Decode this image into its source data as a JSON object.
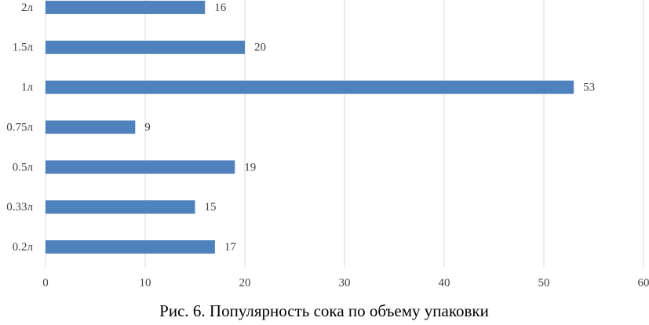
{
  "chart_data": {
    "type": "barh",
    "title": "Рис. 6. Популярность сока по объему упаковки",
    "categories": [
      "2л",
      "1.5л",
      "1л",
      "0.75л",
      "0.5л",
      "0.33л",
      "0.2л"
    ],
    "values": [
      16,
      20,
      53,
      9,
      19,
      15,
      17
    ],
    "color": "#4f81bd",
    "xlim": [
      0,
      60
    ],
    "xticks": [
      0,
      10,
      20,
      30,
      40,
      50,
      60
    ],
    "grid": true
  }
}
